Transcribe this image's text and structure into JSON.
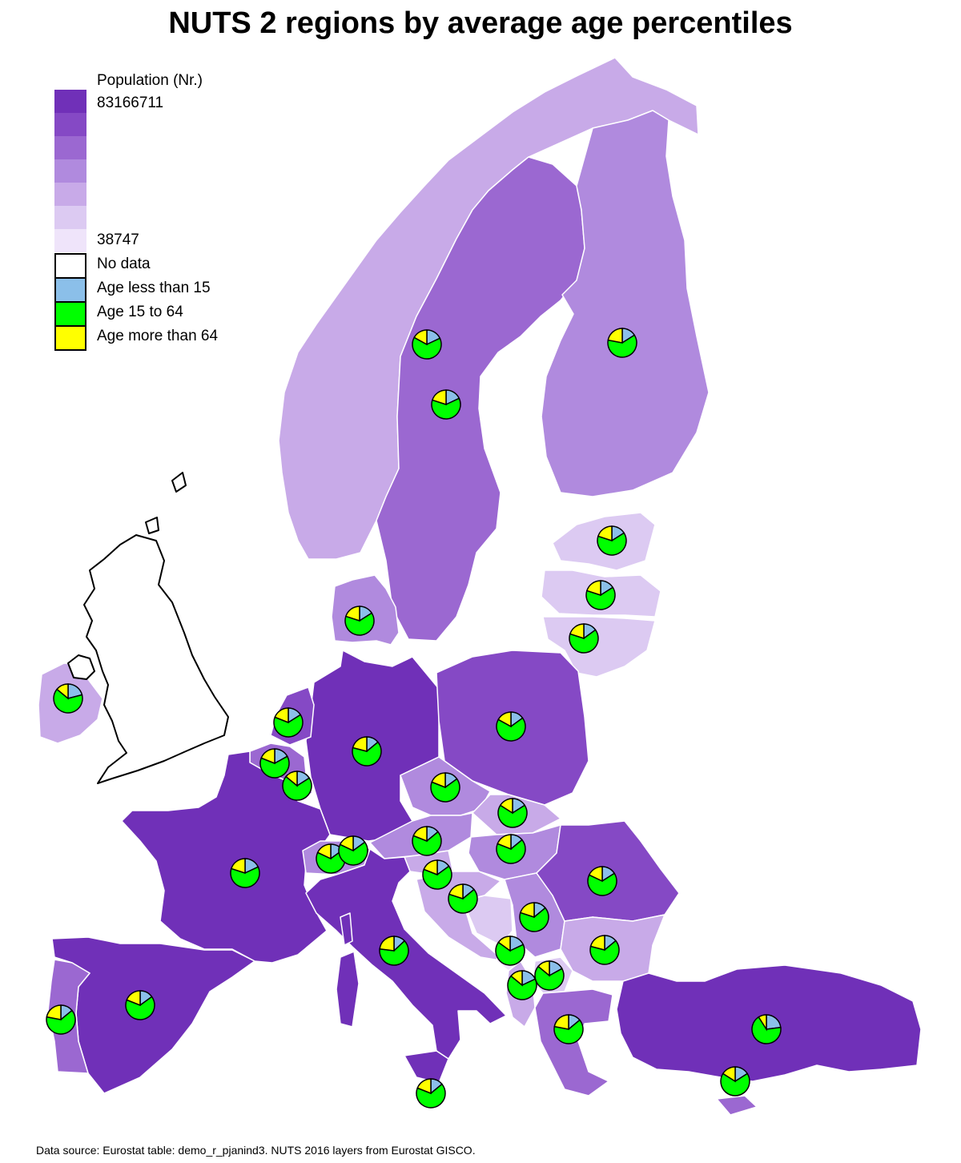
{
  "title": "NUTS 2 regions by average age percentiles",
  "legend": {
    "title": "Population (Nr.)",
    "max_label": "83166711",
    "min_label": "38747",
    "ramp_colors": [
      "#7030b8",
      "#8549c5",
      "#9b68d1",
      "#b08ade",
      "#c8aae8",
      "#dccaf2",
      "#efe4fa"
    ],
    "categories": [
      {
        "label": "No data",
        "color": "#ffffff",
        "icon": "empty-square"
      },
      {
        "label": "Age less than 15",
        "color": "#8bbfe9",
        "icon": "blue-square"
      },
      {
        "label": "Age 15 to 64",
        "color": "#00ff00",
        "icon": "green-square"
      },
      {
        "label": "Age more than 64",
        "color": "#ffff00",
        "icon": "yellow-square"
      }
    ]
  },
  "pie_colors": {
    "young": "#8bbfe9",
    "working": "#00ff00",
    "old": "#ffff00"
  },
  "pies": [
    {
      "name": "pie-norway",
      "young": 0.18,
      "working": 0.65,
      "old": 0.17
    },
    {
      "name": "pie-sweden",
      "young": 0.18,
      "working": 0.62,
      "old": 0.2
    },
    {
      "name": "pie-finland",
      "young": 0.16,
      "working": 0.62,
      "old": 0.22
    },
    {
      "name": "pie-estonia",
      "young": 0.16,
      "working": 0.64,
      "old": 0.2
    },
    {
      "name": "pie-latvia",
      "young": 0.16,
      "working": 0.64,
      "old": 0.2
    },
    {
      "name": "pie-lithuania",
      "young": 0.15,
      "working": 0.65,
      "old": 0.2
    },
    {
      "name": "pie-denmark",
      "young": 0.16,
      "working": 0.64,
      "old": 0.2
    },
    {
      "name": "pie-ireland",
      "young": 0.21,
      "working": 0.65,
      "old": 0.14
    },
    {
      "name": "pie-netherlands",
      "young": 0.16,
      "working": 0.65,
      "old": 0.19
    },
    {
      "name": "pie-belgium",
      "young": 0.17,
      "working": 0.64,
      "old": 0.19
    },
    {
      "name": "pie-luxembourg",
      "young": 0.16,
      "working": 0.7,
      "old": 0.14
    },
    {
      "name": "pie-germany",
      "young": 0.14,
      "working": 0.65,
      "old": 0.21
    },
    {
      "name": "pie-poland",
      "young": 0.15,
      "working": 0.68,
      "old": 0.17
    },
    {
      "name": "pie-czechia",
      "young": 0.15,
      "working": 0.66,
      "old": 0.19
    },
    {
      "name": "pie-slovakia",
      "young": 0.16,
      "working": 0.68,
      "old": 0.16
    },
    {
      "name": "pie-austria",
      "young": 0.14,
      "working": 0.67,
      "old": 0.19
    },
    {
      "name": "pie-hungary",
      "young": 0.14,
      "working": 0.67,
      "old": 0.19
    },
    {
      "name": "pie-switzerland",
      "young": 0.15,
      "working": 0.67,
      "old": 0.18
    },
    {
      "name": "pie-liechtenstein",
      "young": 0.15,
      "working": 0.67,
      "old": 0.18
    },
    {
      "name": "pie-france",
      "young": 0.18,
      "working": 0.62,
      "old": 0.2
    },
    {
      "name": "pie-slovenia",
      "young": 0.15,
      "working": 0.66,
      "old": 0.19
    },
    {
      "name": "pie-croatia",
      "young": 0.14,
      "working": 0.66,
      "old": 0.2
    },
    {
      "name": "pie-romania",
      "young": 0.16,
      "working": 0.66,
      "old": 0.18
    },
    {
      "name": "pie-serbia",
      "young": 0.14,
      "working": 0.66,
      "old": 0.2
    },
    {
      "name": "pie-bulgaria",
      "young": 0.14,
      "working": 0.65,
      "old": 0.21
    },
    {
      "name": "pie-montenegro",
      "young": 0.18,
      "working": 0.67,
      "old": 0.15
    },
    {
      "name": "pie-north-macedonia",
      "young": 0.17,
      "working": 0.69,
      "old": 0.14
    },
    {
      "name": "pie-albania",
      "young": 0.18,
      "working": 0.68,
      "old": 0.14
    },
    {
      "name": "pie-greece",
      "young": 0.14,
      "working": 0.64,
      "old": 0.22
    },
    {
      "name": "pie-italy",
      "young": 0.13,
      "working": 0.64,
      "old": 0.23
    },
    {
      "name": "pie-spain",
      "young": 0.15,
      "working": 0.66,
      "old": 0.19
    },
    {
      "name": "pie-portugal",
      "young": 0.14,
      "working": 0.64,
      "old": 0.22
    },
    {
      "name": "pie-malta",
      "young": 0.14,
      "working": 0.67,
      "old": 0.19
    },
    {
      "name": "pie-turkey",
      "young": 0.23,
      "working": 0.68,
      "old": 0.09
    },
    {
      "name": "pie-cyprus",
      "young": 0.16,
      "working": 0.68,
      "old": 0.16
    }
  ],
  "source": "Data source: Eurostat table: demo_r_pjanind3. NUTS 2016 layers from Eurostat GISCO."
}
